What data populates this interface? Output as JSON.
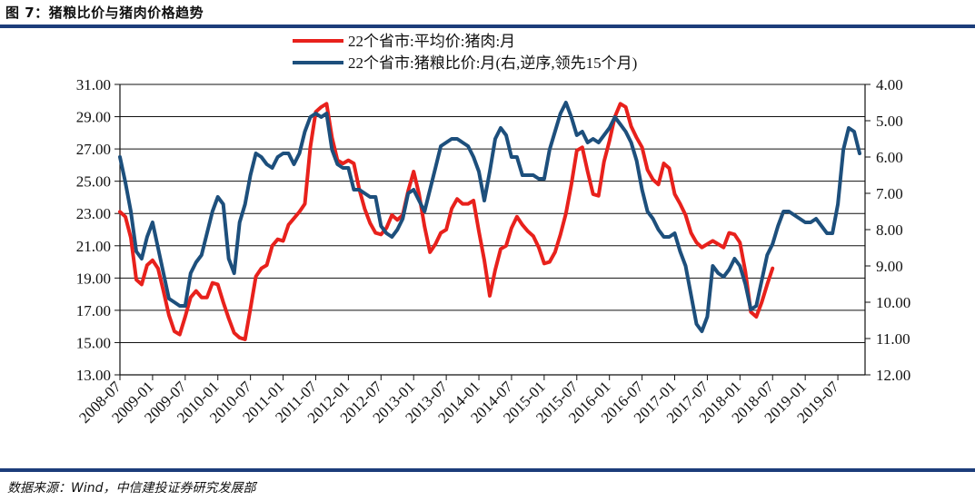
{
  "figure": {
    "title": "图 7：猪粮比价与猪肉价格趋势",
    "source": "数据来源：Wind，中信建投证券研究发展部"
  },
  "colors": {
    "rule": "#1c3d7a",
    "price": "#e8211c",
    "ratio": "#1d4f7c"
  },
  "chart_data": {
    "type": "line",
    "title": "猪粮比价与猪肉价格趋势",
    "x_ticks": [
      "2008-07",
      "2009-01",
      "2009-07",
      "2010-01",
      "2010-07",
      "2011-01",
      "2011-07",
      "2012-01",
      "2012-07",
      "2013-01",
      "2013-07",
      "2014-01",
      "2014-07",
      "2015-01",
      "2015-07",
      "2016-01",
      "2016-07",
      "2017-01",
      "2017-07",
      "2018-01",
      "2018-07",
      "2019-01",
      "2019-07"
    ],
    "x_start": "2008-07",
    "x_range_months": [
      0,
      137
    ],
    "y_left": {
      "min": 13,
      "max": 31,
      "step": 2,
      "ticks": [
        "13.00",
        "15.00",
        "17.00",
        "19.00",
        "21.00",
        "23.00",
        "25.00",
        "27.00",
        "29.00",
        "31.00"
      ]
    },
    "y_right": {
      "min": 4,
      "max": 12,
      "step": 1,
      "reversed": true,
      "ticks": [
        "4.00",
        "5.00",
        "6.00",
        "7.00",
        "8.00",
        "9.00",
        "10.00",
        "11.00",
        "12.00"
      ]
    },
    "series": [
      {
        "name": "22个省市:平均价:猪肉:月",
        "axis": "left",
        "color": "#e8211c",
        "values": [
          23.1,
          22.8,
          21.5,
          18.9,
          18.6,
          19.8,
          20.1,
          19.6,
          18.2,
          16.7,
          15.7,
          15.5,
          16.6,
          17.8,
          18.2,
          17.8,
          17.8,
          18.7,
          18.6,
          17.5,
          16.5,
          15.6,
          15.3,
          15.2,
          17.1,
          19.1,
          19.6,
          19.8,
          21.0,
          21.4,
          21.3,
          22.3,
          22.7,
          23.1,
          23.6,
          27.1,
          29.3,
          29.6,
          29.8,
          27.7,
          26.3,
          26.1,
          26.3,
          26.1,
          24.5,
          23.3,
          22.4,
          21.8,
          21.7,
          22.1,
          22.9,
          22.6,
          22.9,
          24.4,
          25.6,
          24.2,
          22.2,
          20.6,
          21.1,
          21.8,
          22.0,
          23.3,
          23.9,
          23.6,
          23.6,
          23.8,
          21.9,
          20.1,
          17.9,
          19.5,
          20.8,
          21.0,
          22.1,
          22.8,
          22.3,
          21.9,
          21.6,
          20.9,
          19.9,
          20.0,
          20.6,
          21.7,
          23.0,
          24.8,
          26.9,
          27.1,
          25.6,
          24.2,
          24.1,
          26.2,
          27.5,
          29.0,
          29.8,
          29.6,
          28.4,
          27.7,
          27.1,
          25.7,
          25.1,
          24.8,
          26.1,
          25.8,
          24.2,
          23.6,
          22.9,
          21.8,
          21.2,
          20.9,
          21.1,
          21.3,
          21.1,
          20.9,
          21.8,
          21.7,
          21.2,
          19.4,
          16.9,
          16.6,
          17.5,
          18.6,
          19.6
        ]
      },
      {
        "name": "22个省市:猪粮比价:月(右,逆序,领先15个月)",
        "axis": "right",
        "color": "#1d4f7c",
        "values": [
          6.0,
          6.7,
          7.5,
          8.6,
          8.8,
          8.2,
          7.8,
          8.5,
          9.2,
          9.9,
          10.0,
          10.1,
          10.1,
          9.2,
          8.9,
          8.7,
          8.1,
          7.5,
          7.1,
          7.3,
          8.8,
          9.2,
          7.8,
          7.3,
          6.5,
          5.9,
          6.0,
          6.2,
          6.3,
          6.0,
          5.9,
          5.9,
          6.2,
          5.9,
          5.3,
          4.9,
          4.8,
          4.9,
          4.8,
          5.8,
          6.2,
          6.3,
          6.3,
          6.9,
          6.9,
          7.0,
          7.1,
          7.1,
          7.9,
          8.1,
          8.2,
          8.0,
          7.7,
          7.0,
          6.9,
          7.2,
          7.5,
          6.9,
          6.3,
          5.7,
          5.6,
          5.5,
          5.5,
          5.6,
          5.7,
          6.0,
          6.4,
          7.2,
          6.4,
          5.5,
          5.2,
          5.4,
          6.0,
          6.0,
          6.5,
          6.5,
          6.5,
          6.6,
          6.6,
          5.8,
          5.3,
          4.8,
          4.5,
          4.9,
          5.4,
          5.3,
          5.6,
          5.5,
          5.6,
          5.4,
          5.2,
          4.9,
          5.1,
          5.3,
          5.6,
          6.1,
          6.9,
          7.5,
          7.7,
          8.0,
          8.2,
          8.2,
          8.1,
          8.6,
          9.0,
          9.8,
          10.6,
          10.8,
          10.4,
          9.0,
          9.2,
          9.3,
          9.1,
          8.8,
          9.0,
          9.5,
          10.2,
          10.1,
          9.4,
          8.7,
          8.4,
          7.9,
          7.5,
          7.5,
          7.6,
          7.7,
          7.8,
          7.8,
          7.7,
          7.9,
          8.1,
          8.1,
          7.3,
          5.8,
          5.2,
          5.3,
          5.9
        ]
      }
    ],
    "legend": "top-center",
    "grid": "horizontal"
  }
}
